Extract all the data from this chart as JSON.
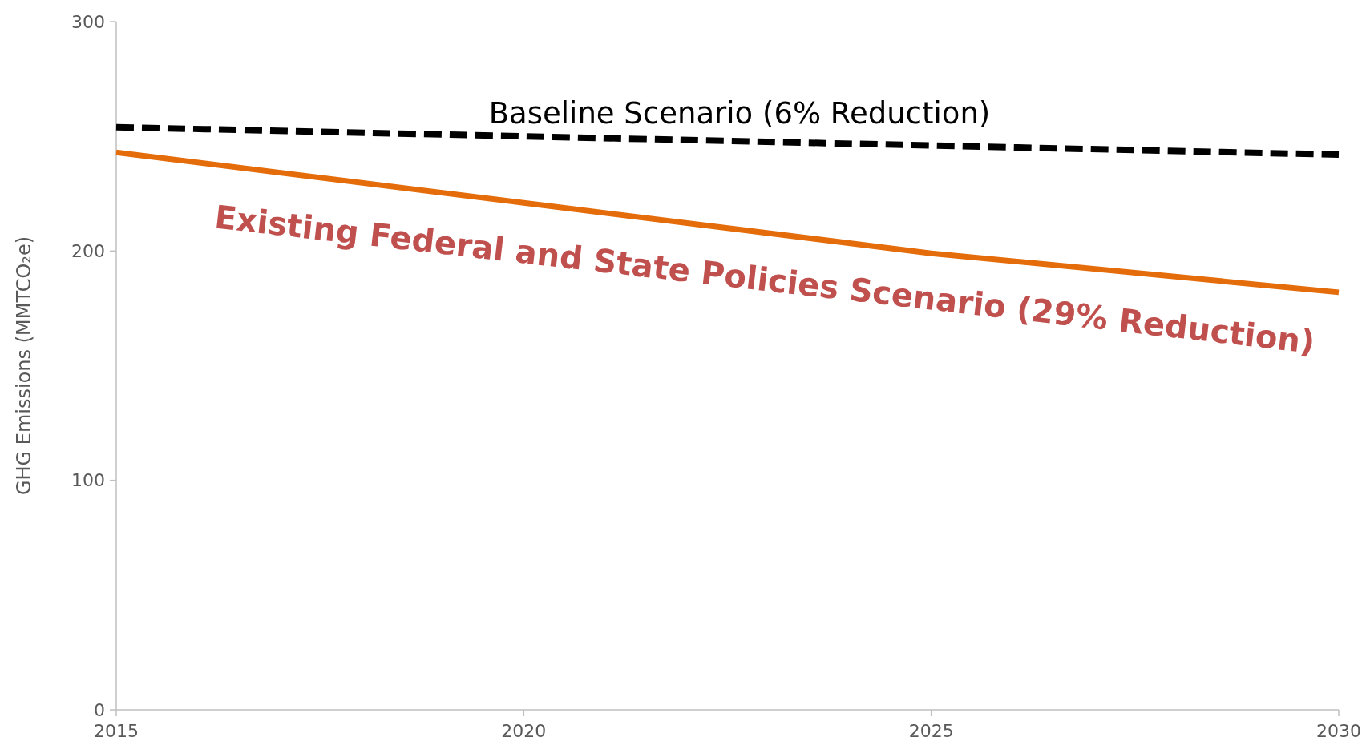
{
  "chart_data": {
    "type": "line",
    "ylabel": "GHG Emissions (MMTCO₂e)",
    "x": [
      2015,
      2020,
      2025,
      2030
    ],
    "xlim": [
      2015,
      2030
    ],
    "xticks": [
      2015,
      2020,
      2025,
      2030
    ],
    "ylim": [
      0,
      300
    ],
    "yticks": [
      0,
      100,
      200,
      300
    ],
    "marker": "none",
    "series": [
      {
        "name": "Baseline Scenario (6% Reduction)",
        "color": "#000000",
        "line_style": "dashed",
        "values": [
          254,
          250,
          246,
          242
        ]
      },
      {
        "name": "Existing Federal and State Policies Scenario (29% Reduction)",
        "color": "#e46c0a",
        "line_style": "solid",
        "values": [
          243,
          221,
          199,
          182
        ]
      }
    ]
  }
}
